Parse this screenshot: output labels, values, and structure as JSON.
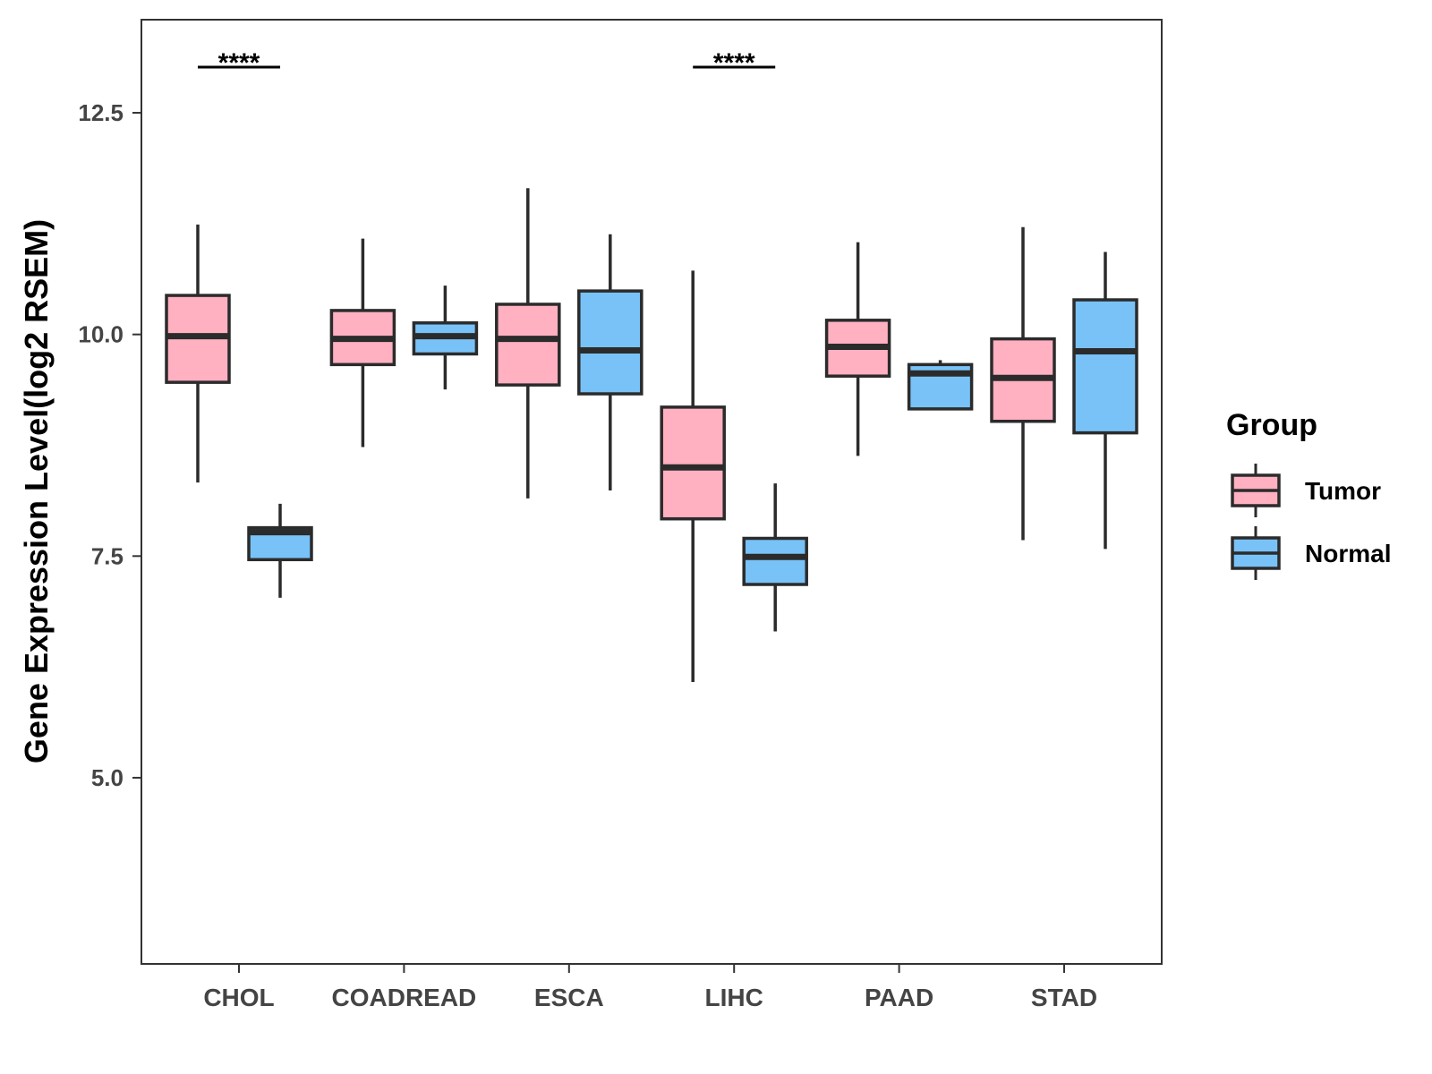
{
  "chart_data": {
    "type": "boxplot",
    "title": "",
    "xlabel": "",
    "ylabel": "Gene Expression Level(log2 RSEM)",
    "ylim": [
      2.9,
      13.55
    ],
    "yticks": [
      5.0,
      7.5,
      10.0,
      12.5
    ],
    "ytick_labels": [
      "5.0",
      "7.5",
      "10.0",
      "12.5"
    ],
    "categories": [
      "CHOL",
      "COADREAD",
      "ESCA",
      "LIHC",
      "PAAD",
      "STAD"
    ],
    "legend": {
      "title": "Group",
      "position": "right",
      "entries": [
        "Tumor",
        "Normal"
      ]
    },
    "series": [
      {
        "name": "Tumor",
        "color": "#FFB0C1",
        "boxes": [
          {
            "min": 8.33,
            "q1": 9.46,
            "median": 9.98,
            "q3": 10.44,
            "max": 11.24
          },
          {
            "min": 8.73,
            "q1": 9.66,
            "median": 9.95,
            "q3": 10.27,
            "max": 11.08
          },
          {
            "min": 8.15,
            "q1": 9.43,
            "median": 9.95,
            "q3": 10.34,
            "max": 11.65
          },
          {
            "min": 6.08,
            "q1": 7.92,
            "median": 8.5,
            "q3": 9.18,
            "max": 10.72
          },
          {
            "min": 8.63,
            "q1": 9.53,
            "median": 9.86,
            "q3": 10.16,
            "max": 11.04
          },
          {
            "min": 7.68,
            "q1": 9.02,
            "median": 9.51,
            "q3": 9.95,
            "max": 11.21
          }
        ]
      },
      {
        "name": "Normal",
        "color": "#78C2F8",
        "boxes": [
          {
            "min": 7.03,
            "q1": 7.46,
            "median": 7.77,
            "q3": 7.82,
            "max": 8.09
          },
          {
            "min": 9.38,
            "q1": 9.78,
            "median": 9.98,
            "q3": 10.13,
            "max": 10.55
          },
          {
            "min": 8.24,
            "q1": 9.33,
            "median": 9.82,
            "q3": 10.49,
            "max": 11.13
          },
          {
            "min": 6.65,
            "q1": 7.18,
            "median": 7.49,
            "q3": 7.7,
            "max": 8.32
          },
          {
            "min": 9.16,
            "q1": 9.16,
            "median": 9.56,
            "q3": 9.66,
            "max": 9.71
          },
          {
            "min": 7.58,
            "q1": 8.89,
            "median": 9.81,
            "q3": 10.39,
            "max": 10.93
          }
        ]
      }
    ],
    "annotations": [
      {
        "category": "CHOL",
        "text": "****"
      },
      {
        "category": "LIHC",
        "text": "****"
      }
    ]
  }
}
